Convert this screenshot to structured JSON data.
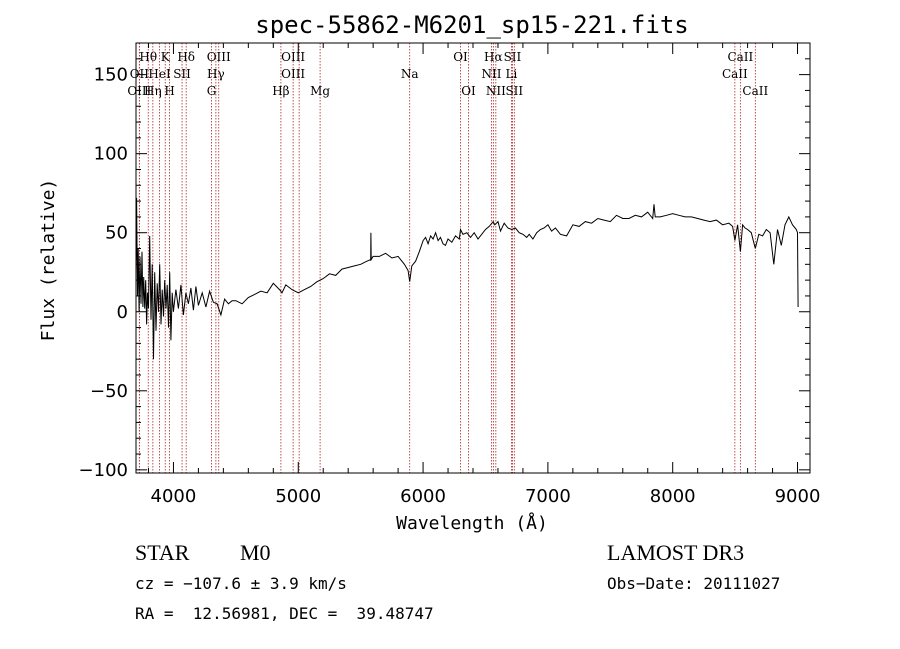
{
  "chart_data": {
    "type": "line",
    "title": "spec-55862-M6201_sp15-221.fits",
    "xlabel": "Wavelength (Å)",
    "ylabel": "Flux (relative)",
    "xlim": [
      3700,
      9100
    ],
    "ylim": [
      -102,
      170
    ],
    "xticks": [
      4000,
      5000,
      6000,
      7000,
      8000,
      9000
    ],
    "yticks": [
      -100,
      -50,
      0,
      50,
      100,
      150
    ],
    "ytick_labels": [
      "−100",
      "−50",
      "0",
      "50",
      "100",
      "150"
    ],
    "series": [
      {
        "name": "flux",
        "x": [
          3700,
          3705,
          3712,
          3718,
          3725,
          3732,
          3740,
          3748,
          3755,
          3762,
          3770,
          3778,
          3785,
          3792,
          3800,
          3810,
          3820,
          3830,
          3840,
          3850,
          3860,
          3870,
          3880,
          3890,
          3900,
          3910,
          3920,
          3930,
          3940,
          3950,
          3960,
          3970,
          3980,
          3990,
          4000,
          4020,
          4040,
          4060,
          4080,
          4100,
          4120,
          4140,
          4160,
          4180,
          4200,
          4230,
          4260,
          4290,
          4320,
          4350,
          4380,
          4410,
          4440,
          4470,
          4500,
          4550,
          4600,
          4650,
          4700,
          4750,
          4800,
          4850,
          4870,
          4900,
          4950,
          5000,
          5050,
          5100,
          5150,
          5200,
          5250,
          5300,
          5350,
          5400,
          5450,
          5500,
          5550,
          5580,
          5582,
          5584,
          5600,
          5650,
          5700,
          5750,
          5800,
          5850,
          5880,
          5893,
          5910,
          5940,
          5970,
          6000,
          6020,
          6040,
          6060,
          6080,
          6100,
          6120,
          6140,
          6160,
          6180,
          6200,
          6230,
          6260,
          6290,
          6300,
          6320,
          6350,
          6380,
          6410,
          6440,
          6470,
          6500,
          6530,
          6562,
          6575,
          6600,
          6620,
          6650,
          6680,
          6710,
          6740,
          6770,
          6800,
          6830,
          6850,
          6880,
          6910,
          6940,
          6970,
          7000,
          7030,
          7060,
          7100,
          7150,
          7200,
          7250,
          7300,
          7350,
          7400,
          7450,
          7500,
          7550,
          7600,
          7650,
          7700,
          7750,
          7800,
          7840,
          7850,
          7860,
          7900,
          7950,
          8000,
          8050,
          8100,
          8150,
          8200,
          8250,
          8300,
          8350,
          8400,
          8450,
          8480,
          8498,
          8520,
          8542,
          8560,
          8580,
          8600,
          8630,
          8662,
          8690,
          8720,
          8750,
          8780,
          8810,
          8840,
          8870,
          8900,
          8930,
          8960,
          8990,
          9000,
          9005
        ],
        "y": [
          25,
          72,
          10,
          40,
          0,
          35,
          5,
          38,
          3,
          22,
          2,
          20,
          -8,
          12,
          2,
          48,
          -5,
          30,
          -30,
          25,
          -12,
          18,
          0,
          30,
          -8,
          14,
          -3,
          20,
          2,
          17,
          -10,
          25,
          -18,
          12,
          0,
          14,
          2,
          17,
          -2,
          12,
          5,
          15,
          1,
          16,
          4,
          12,
          3,
          13,
          6,
          5,
          -2,
          8,
          5,
          7,
          7,
          5,
          9,
          11,
          13,
          12,
          18,
          14,
          12,
          17,
          14,
          12,
          14,
          16,
          19,
          21,
          24,
          23,
          27,
          28,
          29,
          30,
          32,
          33,
          50,
          33,
          35,
          35,
          37,
          34,
          35,
          30,
          26,
          19,
          29,
          32,
          38,
          45,
          47,
          43,
          48,
          46,
          50,
          45,
          47,
          43,
          42,
          46,
          44,
          48,
          46,
          52,
          49,
          50,
          47,
          50,
          46,
          49,
          52,
          54,
          57,
          55,
          57,
          51,
          56,
          53,
          52,
          53,
          50,
          49,
          47,
          49,
          46,
          50,
          52,
          53,
          55,
          51,
          53,
          49,
          48,
          55,
          54,
          57,
          56,
          59,
          58,
          57,
          61,
          59,
          59,
          61,
          60,
          63,
          59,
          68,
          60,
          60,
          61,
          62,
          61,
          60,
          60,
          59,
          58,
          57,
          58,
          55,
          56,
          54,
          45,
          55,
          38,
          55,
          53,
          52,
          50,
          40,
          49,
          48,
          52,
          50,
          30,
          52,
          42,
          55,
          60,
          55,
          52,
          50,
          3
        ]
      }
    ],
    "lines": [
      {
        "name": "Hθ",
        "wl": 3798
      },
      {
        "name": "OII",
        "wl": 3727
      },
      {
        "name": "OIII",
        "wl": 3727
      },
      {
        "name": "HeI",
        "wl": 3889
      },
      {
        "name": "Hη",
        "wl": 3835
      },
      {
        "name": "K",
        "wl": 3934
      },
      {
        "name": "H",
        "wl": 3969
      },
      {
        "name": "SII",
        "wl": 4069
      },
      {
        "name": "Hδ",
        "wl": 4102
      },
      {
        "name": "OIII",
        "wl": 4363
      },
      {
        "name": "Hγ",
        "wl": 4340
      },
      {
        "name": "G",
        "wl": 4305
      },
      {
        "name": "Hβ",
        "wl": 4861
      },
      {
        "name": "OIII",
        "wl": 4959
      },
      {
        "name": "OIII",
        "wl": 5007
      },
      {
        "name": "Mg",
        "wl": 5175
      },
      {
        "name": "Na",
        "wl": 5893
      },
      {
        "name": "OI",
        "wl": 6300
      },
      {
        "name": "OI",
        "wl": 6364
      },
      {
        "name": "Hα",
        "wl": 6563
      },
      {
        "name": "NII",
        "wl": 6548
      },
      {
        "name": "NII",
        "wl": 6583
      },
      {
        "name": "SII",
        "wl": 6716
      },
      {
        "name": "SII",
        "wl": 6731
      },
      {
        "name": "Li",
        "wl": 6708
      },
      {
        "name": "CaII",
        "wl": 8542
      },
      {
        "name": "CaII",
        "wl": 8498
      },
      {
        "name": "CaII",
        "wl": 8662
      }
    ],
    "line_labels": [
      {
        "text": "Hθ",
        "wl": 3798,
        "row": 0
      },
      {
        "text": "K",
        "wl": 3934,
        "row": 0
      },
      {
        "text": "Hδ",
        "wl": 4102,
        "row": 0
      },
      {
        "text": "OIII",
        "wl": 4363,
        "row": 0
      },
      {
        "text": "OIII",
        "wl": 4959,
        "row": 0
      },
      {
        "text": "OI",
        "wl": 6300,
        "row": 0
      },
      {
        "text": "Hα",
        "wl": 6563,
        "row": 0
      },
      {
        "text": "SII",
        "wl": 6716,
        "row": 0
      },
      {
        "text": "CaII",
        "wl": 8542,
        "row": 0
      },
      {
        "text": "OII",
        "wl": 3727,
        "row": 1
      },
      {
        "text": "HeI",
        "wl": 3889,
        "row": 1
      },
      {
        "text": "SII",
        "wl": 4069,
        "row": 1
      },
      {
        "text": "Hγ",
        "wl": 4340,
        "row": 1
      },
      {
        "text": "OIII",
        "wl": 4959,
        "row": 1
      },
      {
        "text": "Na",
        "wl": 5893,
        "row": 1
      },
      {
        "text": "NII",
        "wl": 6548,
        "row": 1
      },
      {
        "text": "Li",
        "wl": 6708,
        "row": 1
      },
      {
        "text": "CaII",
        "wl": 8498,
        "row": 1
      },
      {
        "text": "OIII",
        "wl": 3727,
        "row": 2
      },
      {
        "text": "Hη",
        "wl": 3835,
        "row": 2
      },
      {
        "text": "H",
        "wl": 3969,
        "row": 2
      },
      {
        "text": "G",
        "wl": 4305,
        "row": 2
      },
      {
        "text": "Hβ",
        "wl": 4861,
        "row": 2
      },
      {
        "text": "Mg",
        "wl": 5175,
        "row": 2
      },
      {
        "text": "OI",
        "wl": 6364,
        "row": 2
      },
      {
        "text": "NII",
        "wl": 6583,
        "row": 2
      },
      {
        "text": "SII",
        "wl": 6731,
        "row": 2
      },
      {
        "text": "CaII",
        "wl": 8662,
        "row": 2
      }
    ],
    "line_color": "#b22222",
    "flux_color": "#000000"
  },
  "info": {
    "object_class": "STAR",
    "subclass": "M0",
    "survey": "LAMOST DR3",
    "redshift": "cz = −107.6 ± 3.9 km/s",
    "obs_date": "Obs−Date: 20111027",
    "coords": "RA =  12.56981, DEC =  39.48747"
  }
}
